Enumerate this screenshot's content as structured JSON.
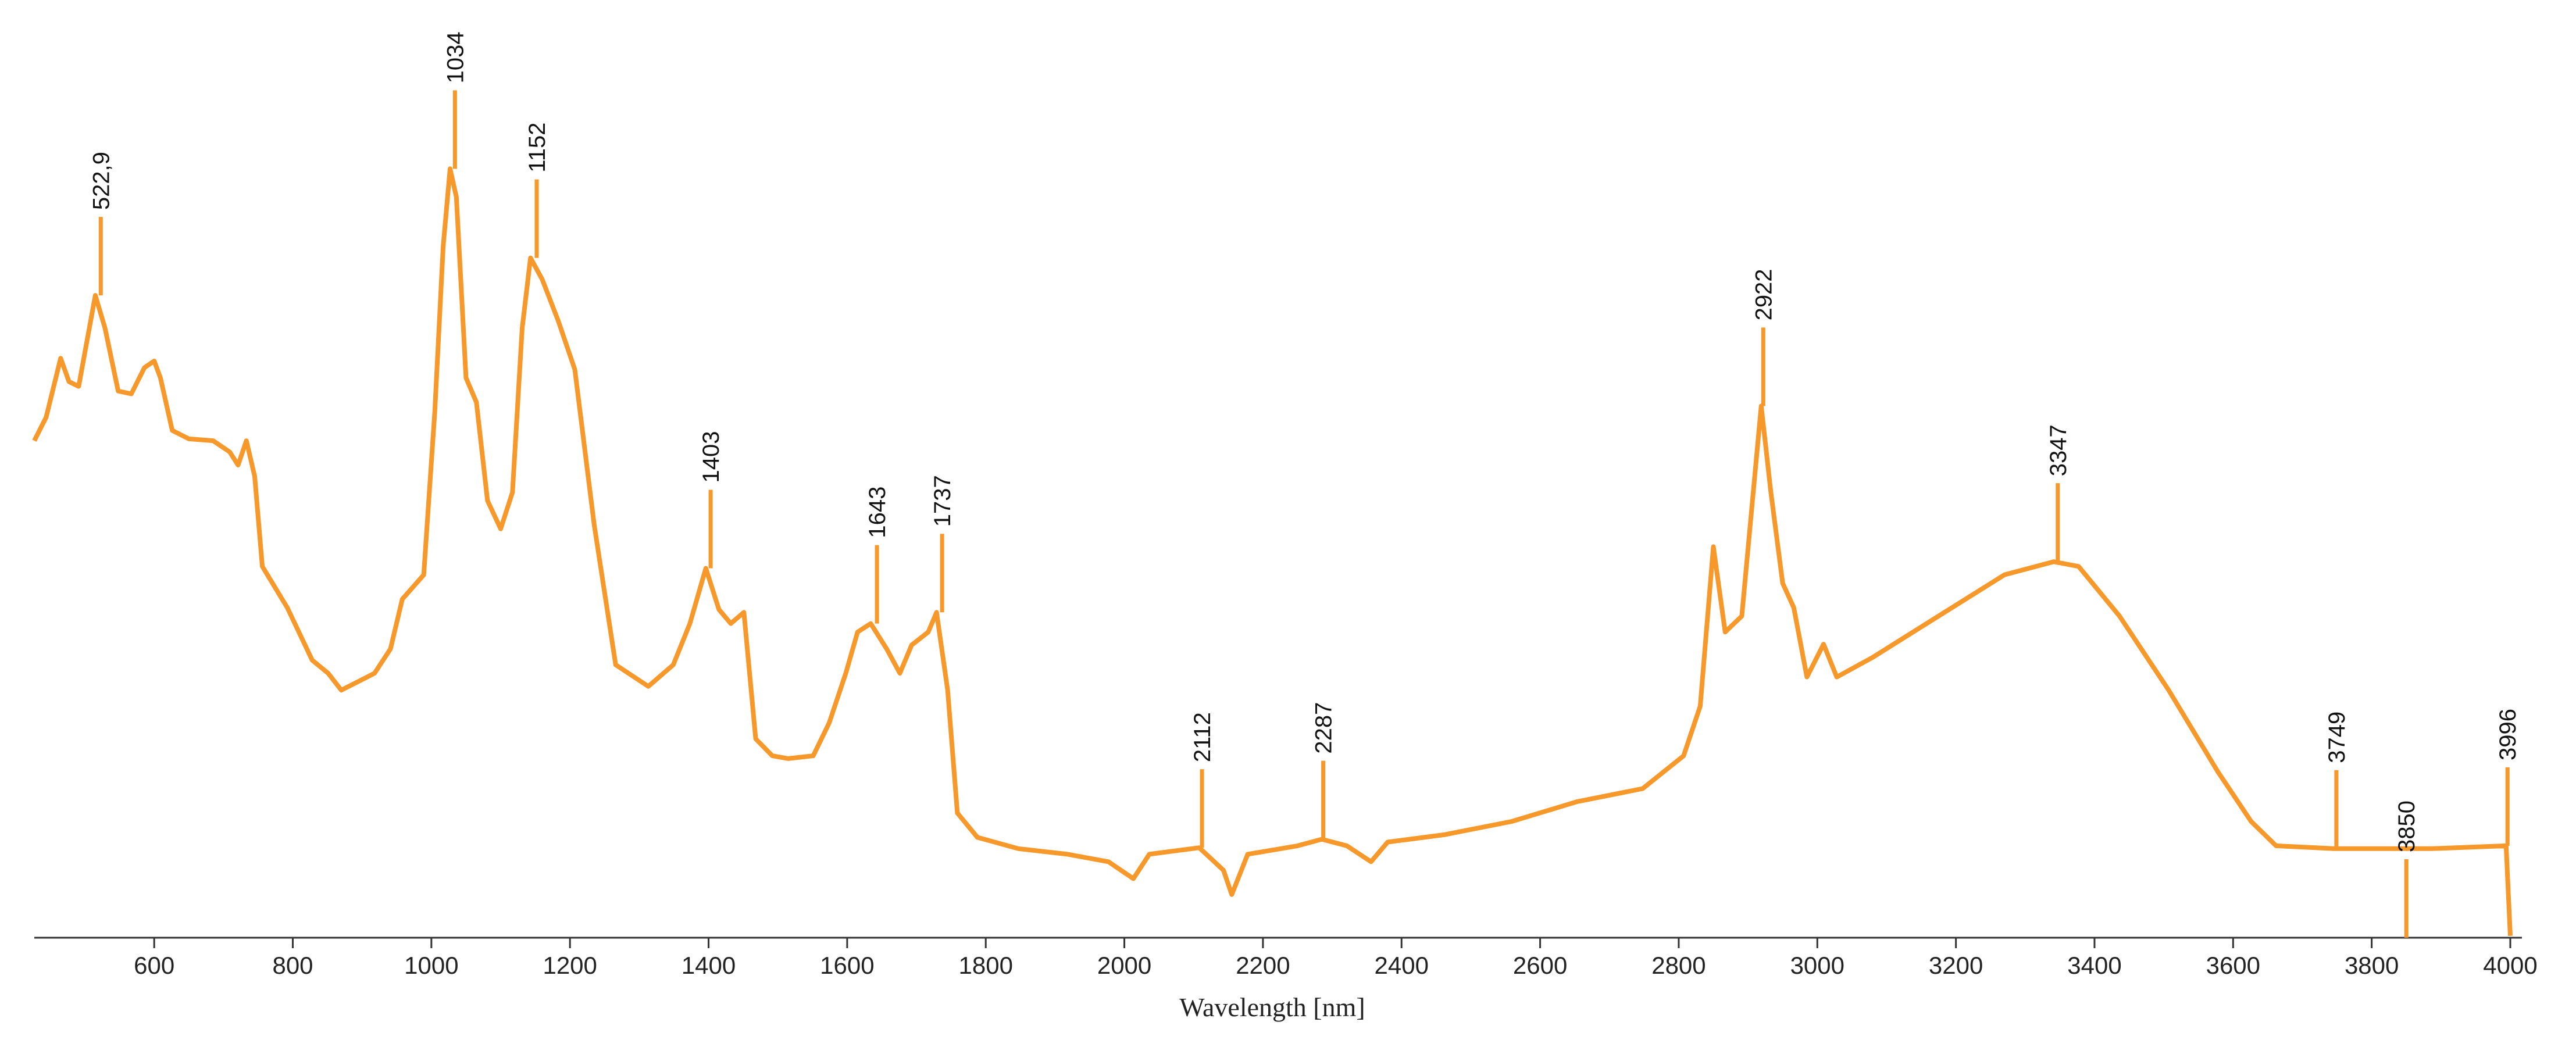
{
  "chart_data": {
    "type": "line",
    "x_label": "Wavelength [nm]",
    "xlim": [
      427,
      4000
    ],
    "ylim": [
      0,
      100
    ],
    "xticks": [
      600,
      800,
      1000,
      1200,
      1400,
      1600,
      1800,
      2000,
      2200,
      2400,
      2600,
      2800,
      3000,
      3200,
      3400,
      3600,
      3800,
      4000
    ],
    "color": "#f7982a",
    "x": [
      427,
      444,
      465,
      477,
      491,
      515,
      529,
      548,
      567,
      586,
      600,
      609,
      626,
      650,
      685,
      709,
      721,
      733,
      745,
      756,
      792,
      828,
      851,
      870,
      894,
      918,
      941,
      958,
      989,
      1005,
      1017,
      1027,
      1036,
      1050,
      1065,
      1081,
      1100,
      1117,
      1131,
      1143,
      1160,
      1183,
      1207,
      1235,
      1266,
      1313,
      1349,
      1373,
      1396,
      1415,
      1432,
      1451,
      1468,
      1492,
      1515,
      1551,
      1574,
      1598,
      1615,
      1634,
      1657,
      1676,
      1693,
      1717,
      1729,
      1745,
      1759,
      1788,
      1847,
      1918,
      1977,
      2013,
      2036,
      2108,
      2143,
      2155,
      2178,
      2250,
      2285,
      2321,
      2356,
      2380,
      2463,
      2559,
      2653,
      2748,
      2807,
      2831,
      2850,
      2867,
      2891,
      2919,
      2933,
      2950,
      2966,
      2985,
      3009,
      3028,
      3080,
      3175,
      3270,
      3341,
      3377,
      3436,
      3507,
      3578,
      3626,
      3662,
      3745,
      3887,
      3994,
      4000
    ],
    "values": [
      53,
      55.5,
      61.8,
      59.3,
      58.8,
      68.5,
      65,
      58.3,
      58,
      60.8,
      61.5,
      59.7,
      54.1,
      53.2,
      53,
      51.8,
      50.4,
      53,
      49.2,
      39.6,
      35.2,
      29.6,
      28.2,
      26.4,
      27.3,
      28.2,
      30.8,
      36.1,
      38.7,
      56.2,
      73.7,
      82,
      79,
      59.7,
      57.1,
      46.6,
      43.6,
      47.5,
      65,
      72.5,
      70.2,
      65.8,
      60.6,
      44,
      29.1,
      26.8,
      29.1,
      33.5,
      39.4,
      35,
      33.5,
      34.7,
      21.2,
      19.4,
      19.1,
      19.4,
      22.9,
      28.2,
      32.6,
      33.5,
      30.8,
      28.2,
      31.2,
      32.6,
      34.7,
      26.4,
      13.3,
      10.7,
      9.5,
      8.9,
      8.1,
      6.3,
      8.9,
      9.6,
      7.2,
      4.6,
      8.9,
      9.8,
      10.5,
      9.8,
      8.1,
      10.2,
      11,
      12.4,
      14.5,
      15.9,
      19.4,
      24.7,
      41.7,
      32.6,
      34.3,
      56.7,
      47.5,
      37.8,
      35.2,
      27.8,
      31.3,
      27.8,
      29.9,
      34.3,
      38.7,
      40.1,
      39.6,
      34.3,
      26.4,
      17.7,
      12.4,
      9.8,
      9.5,
      9.5,
      9.8,
      0.2
    ],
    "annotations": [
      {
        "x": 522.9,
        "label": "522,9"
      },
      {
        "x": 1034,
        "label": "1034"
      },
      {
        "x": 1152,
        "label": "1152"
      },
      {
        "x": 1403,
        "label": "1403"
      },
      {
        "x": 1643,
        "label": "1643"
      },
      {
        "x": 1737,
        "label": "1737"
      },
      {
        "x": 2112,
        "label": "2112"
      },
      {
        "x": 2287,
        "label": "2287"
      },
      {
        "x": 2922,
        "label": "2922"
      },
      {
        "x": 3347,
        "label": "3347"
      },
      {
        "x": 3749,
        "label": "3749"
      },
      {
        "x": 3850,
        "label": "3850"
      },
      {
        "x": 3996,
        "label": "3996"
      }
    ]
  }
}
